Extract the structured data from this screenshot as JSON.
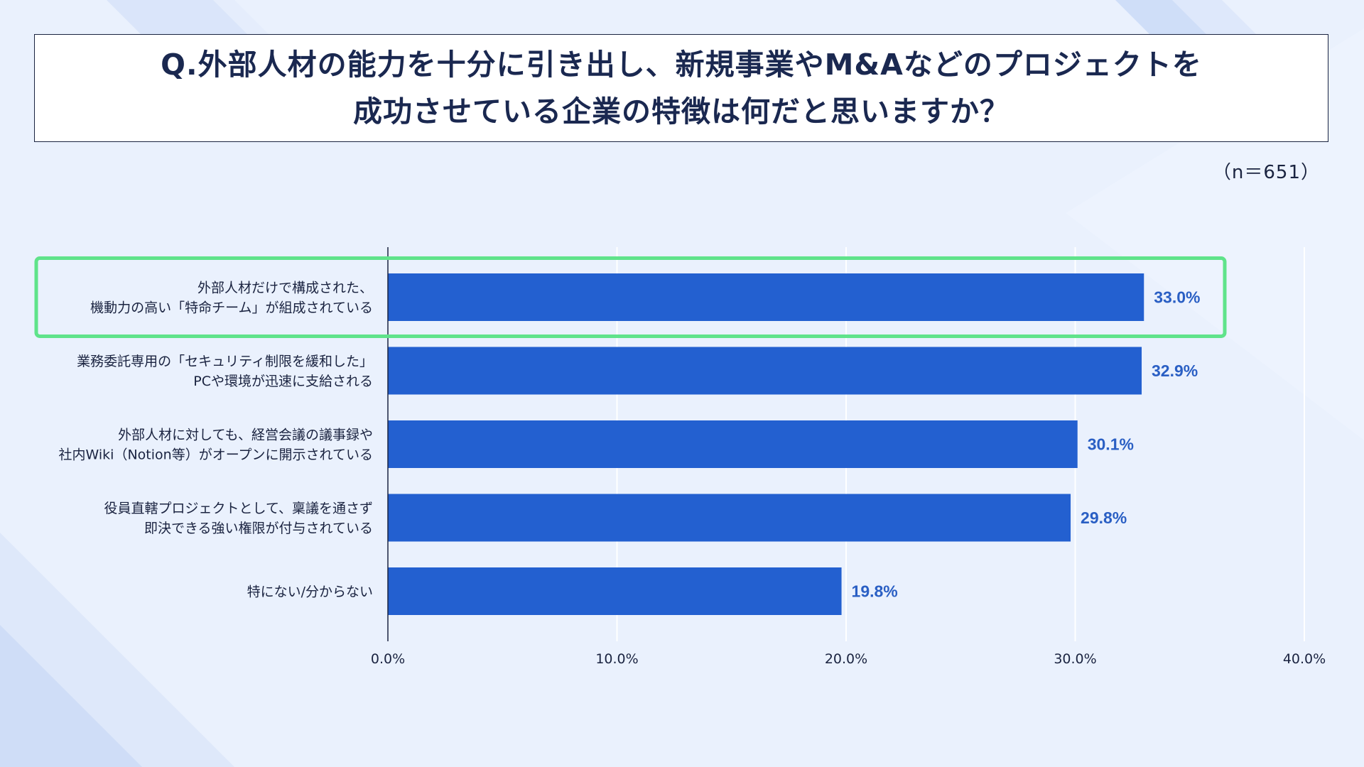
{
  "header": {
    "title_line1": "Q.外部人材の能力を十分に引き出し、新規事業やM&Aなどのプロジェクトを",
    "title_line2": "成功させている企業の特徴は何だと思いますか？",
    "sample_size": "（n＝651）"
  },
  "colors": {
    "background": "#eaf1fd",
    "bar": "#2360d0",
    "value_label": "#2a5fc4",
    "highlight_border": "#5fe38a",
    "title_text": "#1a2850"
  },
  "chart_data": {
    "type": "bar",
    "orientation": "horizontal",
    "categories": [
      [
        "外部人材だけで構成された、",
        "機動力の高い「特命チーム」が組成されている"
      ],
      [
        "業務委託専用の「セキュリティ制限を緩和した」",
        "PCや環境が迅速に支給される"
      ],
      [
        "外部人材に対しても、経営会議の議事録や",
        "社内Wiki（Notion等）がオープンに開示されている"
      ],
      [
        "役員直轄プロジェクトとして、稟議を通さず",
        "即決できる強い権限が付与されている"
      ],
      [
        "特にない/分からない"
      ]
    ],
    "values": [
      33.0,
      32.9,
      30.1,
      29.8,
      19.8
    ],
    "value_labels": [
      "33.0%",
      "32.9%",
      "30.1%",
      "29.8%",
      "19.8%"
    ],
    "xlim": [
      0,
      40
    ],
    "ticks": [
      0,
      10,
      20,
      30,
      40
    ],
    "tick_labels": [
      "0.0%",
      "10.0%",
      "20.0%",
      "30.0%",
      "40.0%"
    ],
    "highlighted_index": 0,
    "grid": true
  }
}
